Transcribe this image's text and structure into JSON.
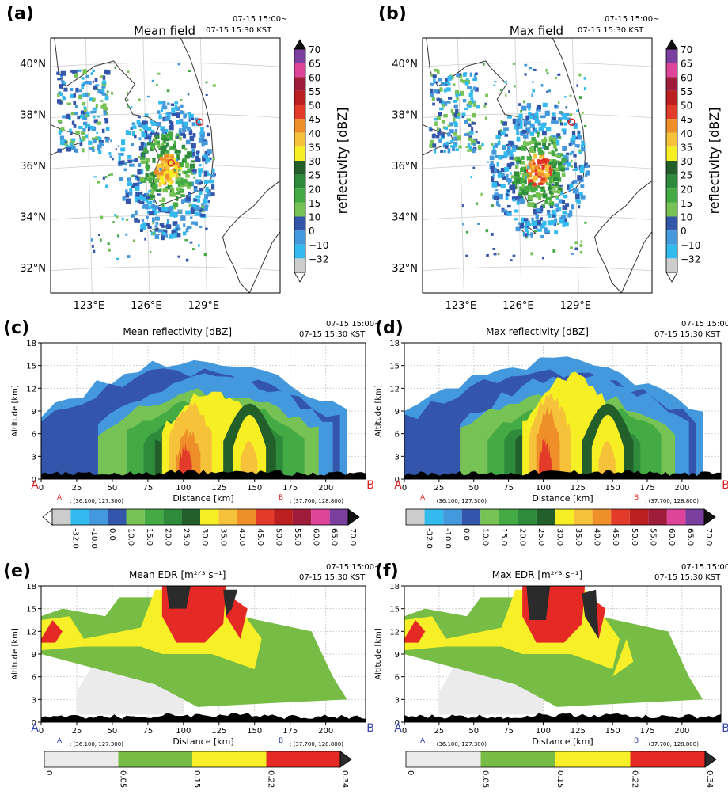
{
  "figure": {
    "panels": [
      {
        "id": "a",
        "letter": "(a)",
        "kind": "map",
        "title": "Mean field",
        "time": [
          "07-15 15:00~",
          "07-15 15:30 KST"
        ]
      },
      {
        "id": "b",
        "letter": "(b)",
        "kind": "map",
        "title": "Max field",
        "time": [
          "07-15 15:00~",
          "07-15 15:30 KST"
        ]
      },
      {
        "id": "c",
        "letter": "(c)",
        "kind": "xsec",
        "title": "Mean reflectivity [dBZ]",
        "time": [
          "07-15 15:00~",
          "07-15 15:30 KST"
        ]
      },
      {
        "id": "d",
        "letter": "(d)",
        "kind": "xsec",
        "title": "Max  reflectivity [dBZ]",
        "time": [
          "07-15 15:00~",
          "07-15 15:30 KST"
        ]
      },
      {
        "id": "e",
        "letter": "(e)",
        "kind": "xsec",
        "title": "Mean EDR [m²ᐟ³ s⁻¹]",
        "time": [
          "07-15 15:00~",
          "07-15 15:30 KST"
        ]
      },
      {
        "id": "f",
        "letter": "(f)",
        "kind": "xsec",
        "title": "Max EDR [m²ᐟ³ s⁻¹]",
        "time": [
          "07-15 15:00~",
          "07-15 15:30 KST"
        ]
      }
    ]
  },
  "chart_data": [
    {
      "type": "heatmap",
      "panel": "a",
      "title": "Mean field",
      "subtitle": "07-15 15:00~ 07-15 15:30 KST",
      "lat_ticks": [
        "32°N",
        "34°N",
        "36°N",
        "38°N",
        "40°N"
      ],
      "lon_ticks": [
        "123°E",
        "126°E",
        "129°E"
      ],
      "xlim": [
        121,
        133
      ],
      "ylim": [
        31,
        41
      ],
      "cross_section": {
        "A": [
          36.1,
          127.3
        ],
        "B": [
          37.7,
          128.8
        ]
      },
      "colorbar": {
        "label": "reflectivity [dBZ]",
        "ticks": [
          "70",
          "65",
          "60",
          "55",
          "50",
          "45",
          "40",
          "35",
          "30",
          "25",
          "20",
          "15",
          "10",
          "0",
          "−10",
          "−32"
        ]
      }
    },
    {
      "type": "heatmap",
      "panel": "b",
      "title": "Max field",
      "subtitle": "07-15 15:00~ 07-15 15:30 KST",
      "lat_ticks": [
        "32°N",
        "34°N",
        "36°N",
        "38°N",
        "40°N"
      ],
      "lon_ticks": [
        "123°E",
        "126°E",
        "129°E"
      ],
      "xlim": [
        121,
        133
      ],
      "ylim": [
        31,
        41
      ],
      "cross_section": {
        "A": [
          36.1,
          127.3
        ],
        "B": [
          37.7,
          128.8
        ]
      },
      "colorbar": {
        "label": "reflectivity [dBZ]",
        "ticks": [
          "70",
          "65",
          "60",
          "55",
          "50",
          "45",
          "40",
          "35",
          "30",
          "25",
          "20",
          "15",
          "10",
          "0",
          "−10",
          "−32"
        ]
      }
    },
    {
      "type": "heatmap",
      "panel": "c",
      "title": "Mean reflectivity [dBZ]",
      "xlabel": "Distance [km]",
      "ylabel": "Altitude [km]",
      "x_ticks": [
        0,
        25,
        50,
        75,
        100,
        125,
        150,
        175,
        200
      ],
      "y_ticks": [
        0,
        3,
        6,
        9,
        12,
        15,
        18
      ],
      "xlim": [
        0,
        228
      ],
      "ylim": [
        0,
        18
      ],
      "endpoint_A": "A",
      "endpoint_B": "B",
      "coord_A": ": (36.100, 127.300)",
      "coord_B": ": (37.700, 128.800)",
      "colorbar_ticks": [
        "-32.0",
        "-10.0",
        "0.0",
        "10.0",
        "15.0",
        "20.0",
        "25.0",
        "30.0",
        "35.0",
        "40.0",
        "45.0",
        "50.0",
        "55.0",
        "60.0",
        "65.0",
        "70.0"
      ]
    },
    {
      "type": "heatmap",
      "panel": "d",
      "title": "Max  reflectivity [dBZ]",
      "xlabel": "Distance [km]",
      "ylabel": "Altitude [km]",
      "x_ticks": [
        0,
        25,
        50,
        75,
        100,
        125,
        150,
        175,
        200
      ],
      "y_ticks": [
        0,
        3,
        6,
        9,
        12,
        15,
        18
      ],
      "xlim": [
        0,
        228
      ],
      "ylim": [
        0,
        18
      ],
      "endpoint_A": "A",
      "endpoint_B": "B",
      "coord_A": ": (36.100, 127.300)",
      "coord_B": ": (37.700, 128.800)",
      "colorbar_ticks": [
        "-32.0",
        "-10.0",
        "0.0",
        "10.0",
        "15.0",
        "20.0",
        "25.0",
        "30.0",
        "35.0",
        "40.0",
        "45.0",
        "50.0",
        "55.0",
        "60.0",
        "65.0",
        "70.0"
      ]
    },
    {
      "type": "heatmap",
      "panel": "e",
      "title": "Mean EDR",
      "xlabel": "Distance [km]",
      "ylabel": "Altitude [km]",
      "x_ticks": [
        0,
        25,
        50,
        75,
        100,
        125,
        150,
        175,
        200
      ],
      "y_ticks": [
        0,
        3,
        6,
        9,
        12,
        15,
        18
      ],
      "xlim": [
        0,
        228
      ],
      "ylim": [
        0,
        18
      ],
      "endpoint_A": "A",
      "endpoint_B": "B",
      "coord_A": ": (36.100, 127.300)",
      "coord_B": ": (37.700, 128.800)",
      "colorbar_ticks": [
        "0",
        "0.05",
        "0.15",
        "0.22",
        "0.34"
      ]
    },
    {
      "type": "heatmap",
      "panel": "f",
      "title": "Max EDR",
      "xlabel": "Distance [km]",
      "ylabel": "Altitude [km]",
      "x_ticks": [
        0,
        25,
        50,
        75,
        100,
        125,
        150,
        175,
        200
      ],
      "y_ticks": [
        0,
        3,
        6,
        9,
        12,
        15,
        18
      ],
      "xlim": [
        0,
        228
      ],
      "ylim": [
        0,
        18
      ],
      "endpoint_A": "A",
      "endpoint_B": "B",
      "coord_A": ": (36.100, 127.300)",
      "coord_B": ": (37.700, 128.800)",
      "colorbar_ticks": [
        "0",
        "0.05",
        "0.15",
        "0.22",
        "0.34"
      ]
    }
  ],
  "colors": {
    "dbz": [
      "#cccccc",
      "#33bbee",
      "#4499dd",
      "#3355aa",
      "#77c255",
      "#44ab44",
      "#2e8b3c",
      "#225f2a",
      "#f5ef24",
      "#f6c23a",
      "#ef8f2a",
      "#e33b2a",
      "#bb1f1f",
      "#9f1d3b",
      "#dd449a",
      "#7b3fa0"
    ],
    "dbz_over": "#111111",
    "dbz_under": "#ffffff",
    "edr": [
      "#ebebeb",
      "#77bd45",
      "#f7ef28",
      "#e52a25"
    ],
    "edr_over": "#2b2b2b",
    "terrain": "#000000",
    "endpoint_A_red": "#dd2222",
    "endpoint_B_red": "#dd2222",
    "endpoint_blue": "#3344aa"
  }
}
